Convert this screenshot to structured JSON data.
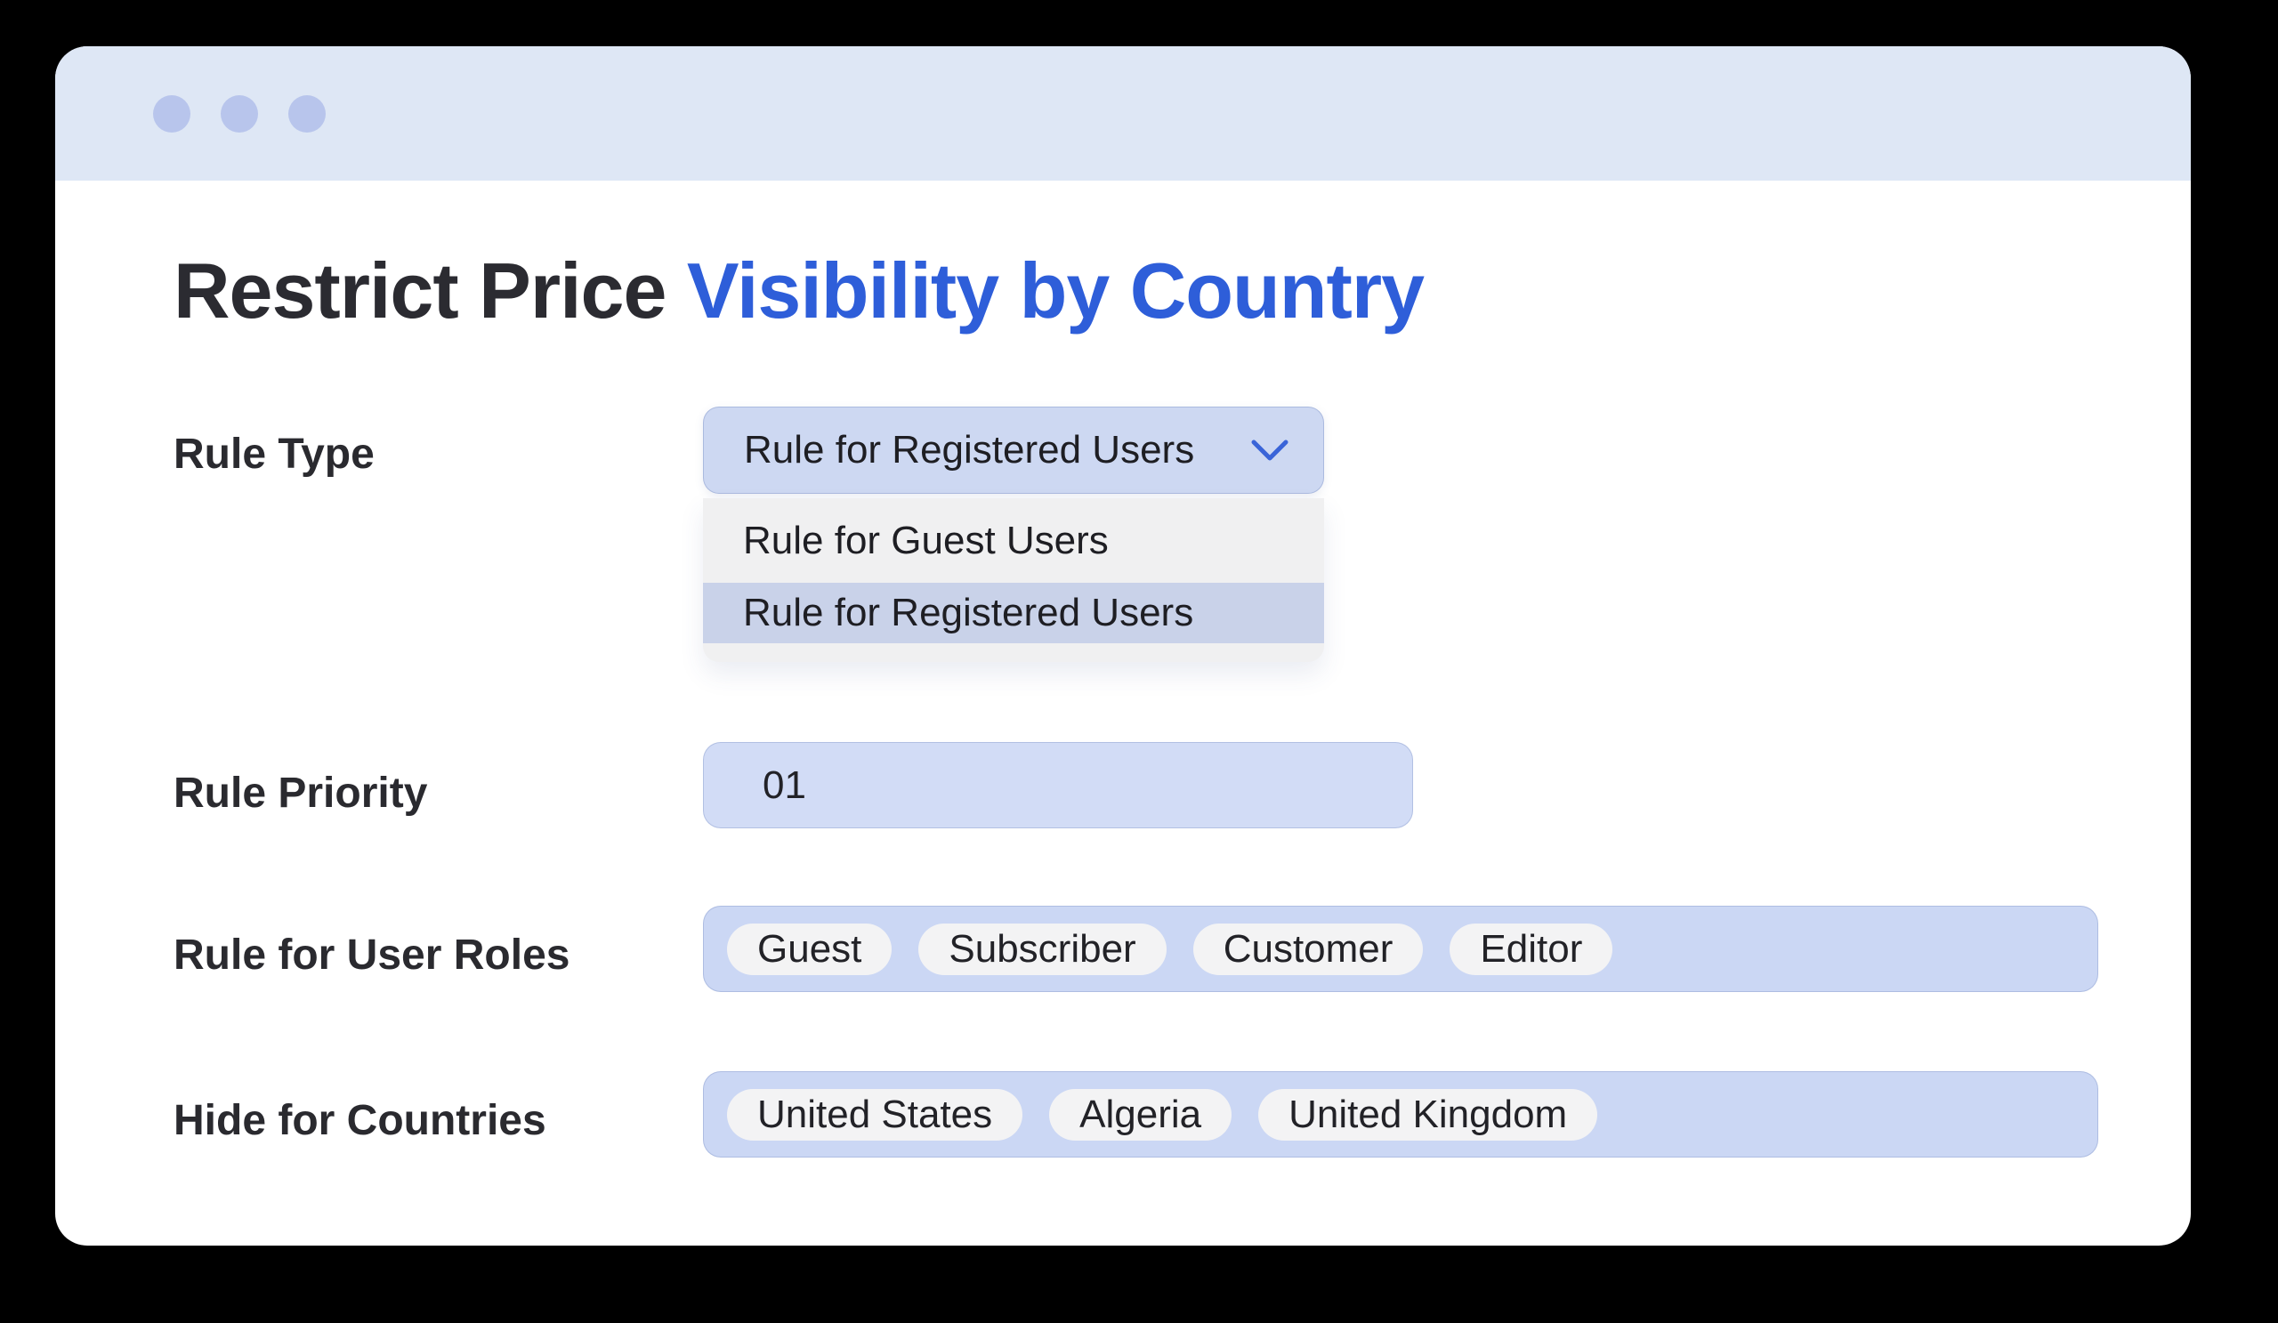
{
  "window": {
    "traffic_dots_count": 3
  },
  "title": {
    "dark": "Restrict Price",
    "accent": " Visibility by Country"
  },
  "form": {
    "rule_type": {
      "label": "Rule Type",
      "selected": "Rule for Registered Users",
      "options": [
        "Rule for Guest Users",
        "Rule for Registered Users"
      ],
      "highlighted_option": "Rule for Registered Users"
    },
    "rule_priority": {
      "label": "Rule Priority",
      "value": "01"
    },
    "user_roles": {
      "label": "Rule for User Roles",
      "tags": [
        "Guest",
        "Subscriber",
        "Customer",
        "Editor"
      ]
    },
    "countries": {
      "label": "Hide for Countries",
      "tags": [
        "United States",
        "Algeria",
        "United Kingdom"
      ]
    }
  },
  "colors": {
    "background": "#000000",
    "window": "#ffffff",
    "titlebar": "#dee7f5",
    "titlebar_dot": "#b8c5ec",
    "accent_blue": "#2e5ed9",
    "chevron_blue": "#3a64d8",
    "field_periwinkle": "#cdd8f2",
    "input_periwinkle": "#d2dcf6",
    "tagbox_periwinkle": "#cbd7f4",
    "dropdown_panel": "#f0f0f1",
    "dropdown_highlight": "#c9d2e9",
    "tag_background": "#f3f3f4",
    "text_dark": "#2a2a2f"
  }
}
